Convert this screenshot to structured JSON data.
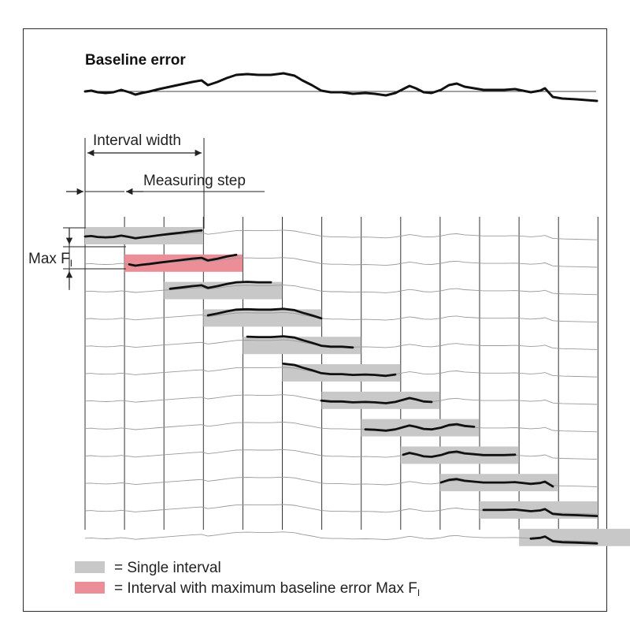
{
  "title": "Baseline error",
  "labels": {
    "interval_width": "Interval width",
    "measuring_step": "Measuring step",
    "max_prefix": "Max F",
    "max_subscript": "I"
  },
  "legend": {
    "single": "= Single interval",
    "max_text": "= Interval with maximum baseline error Max F",
    "max_subscript": "I"
  },
  "colors": {
    "single_interval": "#c8c8c8",
    "max_interval": "#ec8e97",
    "curve": "#111111",
    "thin_curve": "#9a9a9a",
    "grid": "#333333"
  }
}
